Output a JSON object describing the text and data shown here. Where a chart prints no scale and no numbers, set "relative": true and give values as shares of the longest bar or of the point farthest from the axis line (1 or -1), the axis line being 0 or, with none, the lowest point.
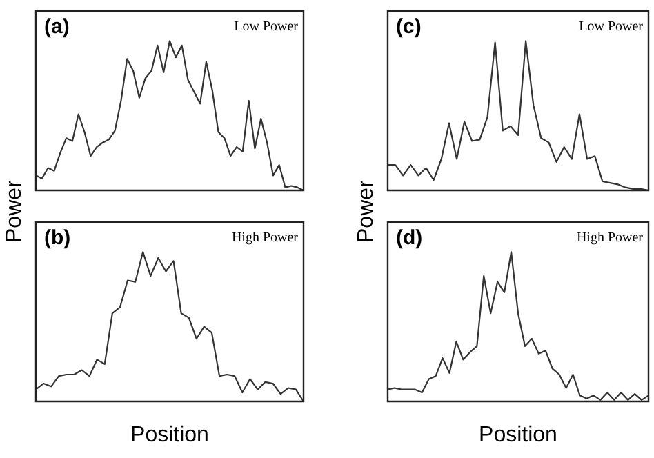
{
  "chart_data": [
    {
      "type": "line",
      "title": "(a)",
      "annotations": [
        "Low Power"
      ],
      "relative": true,
      "tick_labels": false,
      "legend": false,
      "color": "#333333",
      "categories": [
        null,
        null,
        null,
        null,
        null,
        null,
        null,
        null,
        null,
        null,
        null,
        null,
        null,
        null,
        null,
        null,
        null,
        null,
        null,
        null,
        null,
        null,
        null,
        null,
        null,
        null,
        null,
        null,
        null,
        null,
        null,
        null,
        null,
        null,
        null,
        null,
        null,
        null,
        null,
        null,
        null,
        null,
        null,
        null,
        null
      ],
      "values": [
        0.1,
        0.08,
        0.15,
        0.13,
        0.25,
        0.35,
        0.33,
        0.51,
        0.39,
        0.23,
        0.29,
        0.32,
        0.34,
        0.4,
        0.6,
        0.88,
        0.8,
        0.62,
        0.75,
        0.8,
        0.97,
        0.79,
        1,
        0.89,
        0.97,
        0.74,
        0.66,
        0.58,
        0.86,
        0.67,
        0.39,
        0.35,
        0.23,
        0.29,
        0.26,
        0.6,
        0.28,
        0.48,
        0.32,
        0.1,
        0.17,
        0.02,
        0.03,
        0.02,
        0
      ]
    },
    {
      "type": "line",
      "title": "(c)",
      "annotations": [
        "Low Power"
      ],
      "relative": true,
      "tick_labels": false,
      "legend": false,
      "color": "#333333",
      "categories": [
        null,
        null,
        null,
        null,
        null,
        null,
        null,
        null,
        null,
        null,
        null,
        null,
        null,
        null,
        null,
        null,
        null,
        null,
        null,
        null,
        null,
        null,
        null,
        null,
        null,
        null,
        null,
        null,
        null,
        null,
        null,
        null,
        null,
        null,
        null
      ],
      "values": [
        0.17,
        0.17,
        0.1,
        0.17,
        0.1,
        0.15,
        0.07,
        0.21,
        0.45,
        0.21,
        0.46,
        0.33,
        0.34,
        0.49,
        0.99,
        0.4,
        0.43,
        0.37,
        1,
        0.57,
        0.35,
        0.32,
        0.19,
        0.29,
        0.21,
        0.51,
        0.21,
        0.23,
        0.06,
        0.05,
        0.04,
        0.02,
        0.01,
        0.01,
        0
      ]
    },
    {
      "type": "line",
      "title": "(b)",
      "annotations": [
        "High Power"
      ],
      "xlabel": "Position",
      "ylabel": "Power",
      "relative": true,
      "tick_labels": false,
      "legend": false,
      "color": "#333333",
      "categories": [
        null,
        null,
        null,
        null,
        null,
        null,
        null,
        null,
        null,
        null,
        null,
        null,
        null,
        null,
        null,
        null,
        null,
        null,
        null,
        null,
        null,
        null,
        null,
        null,
        null,
        null,
        null,
        null,
        null,
        null,
        null,
        null,
        null,
        null,
        null,
        null
      ],
      "values": [
        0.08,
        0.12,
        0.1,
        0.17,
        0.18,
        0.18,
        0.21,
        0.17,
        0.28,
        0.25,
        0.59,
        0.63,
        0.81,
        0.8,
        1,
        0.84,
        0.96,
        0.87,
        0.94,
        0.59,
        0.56,
        0.42,
        0.5,
        0.46,
        0.17,
        0.18,
        0.17,
        0.06,
        0.15,
        0.08,
        0.13,
        0.12,
        0.05,
        0.09,
        0.08,
        0
      ]
    },
    {
      "type": "line",
      "title": "(d)",
      "annotations": [
        "High Power"
      ],
      "xlabel": "Position",
      "ylabel": "Power",
      "relative": true,
      "tick_labels": false,
      "legend": false,
      "color": "#333333",
      "categories": [
        null,
        null,
        null,
        null,
        null,
        null,
        null,
        null,
        null,
        null,
        null,
        null,
        null,
        null,
        null,
        null,
        null,
        null,
        null,
        null,
        null,
        null,
        null,
        null,
        null,
        null,
        null,
        null,
        null,
        null,
        null,
        null,
        null,
        null,
        null,
        null,
        null,
        null,
        null
      ],
      "values": [
        0.08,
        0.09,
        0.08,
        0.08,
        0.08,
        0.06,
        0.15,
        0.17,
        0.29,
        0.19,
        0.4,
        0.28,
        0.33,
        0.37,
        0.84,
        0.59,
        0.8,
        0.73,
        1,
        0.59,
        0.37,
        0.42,
        0.32,
        0.34,
        0.22,
        0.18,
        0.09,
        0.18,
        0.04,
        0.02,
        0.04,
        0.01,
        0.06,
        0.01,
        0.06,
        0.01,
        0.05,
        0.01,
        0.04
      ]
    }
  ]
}
